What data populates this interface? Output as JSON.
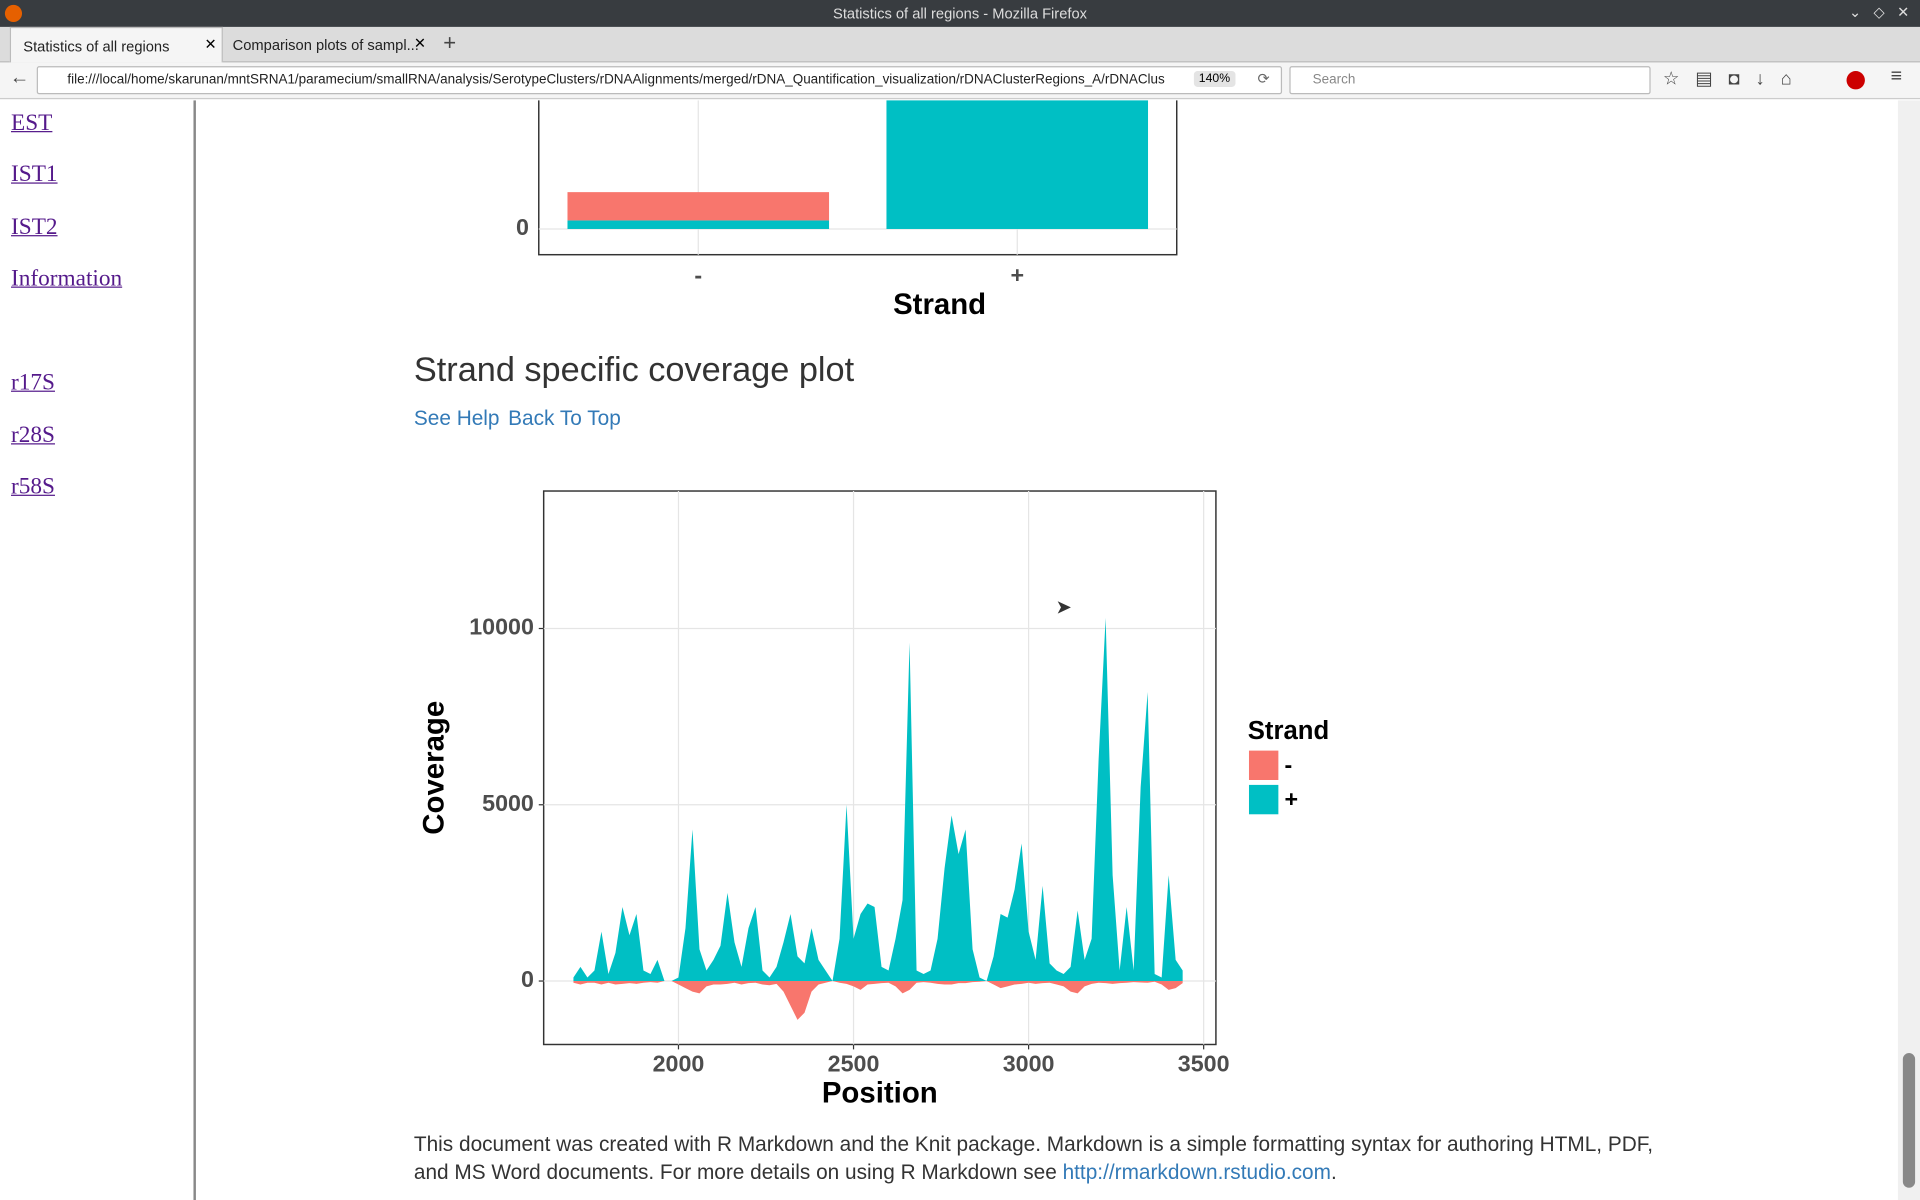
{
  "browser": {
    "window_title": "Statistics of all regions - Mozilla Firefox",
    "tabs": [
      "Statistics of all regions",
      "Comparison plots of sampl..."
    ],
    "url": "file:///local/home/skarunan/mntSRNA1/paramecium/smallRNA/analysis/SerotypeClusters/rDNAAlignments/merged/rDNA_Quantification_visualization/rDNAClusterRegions_A/rDNAClus",
    "zoom": "140%",
    "search_placeholder": "Search"
  },
  "sidebar": {
    "links": [
      "EST",
      "IST1",
      "IST2",
      "Information",
      "r17S",
      "r28S",
      "r58S"
    ]
  },
  "section": {
    "title": "Strand specific coverage plot",
    "links": [
      "See Help",
      "Back To Top"
    ]
  },
  "footer": {
    "text": "This document was created with R Markdown and the Knit package. Markdown is a simple formatting syntax for authoring HTML, PDF, and MS Word documents. For more details on using R Markdown see ",
    "link": "http://rmarkdown.rstudio.com",
    "end": "."
  },
  "chart_data": [
    {
      "type": "bar",
      "stacked": true,
      "x_label": "Strand",
      "categories": [
        "-",
        "+"
      ],
      "series": [
        {
          "name": "-",
          "color": "#F8766D",
          "values": [
            1100,
            0
          ]
        },
        {
          "name": "+",
          "color": "#00BFC4",
          "values": [
            333,
            20000
          ]
        }
      ],
      "ylim": [
        -1000,
        21000
      ],
      "yticks": [
        0
      ],
      "grid": true
    },
    {
      "type": "area",
      "x_label": "Position",
      "y_label": "Coverage",
      "legend_title": "Strand",
      "legend": "right",
      "x": [
        1700,
        1720,
        1740,
        1760,
        1780,
        1800,
        1820,
        1840,
        1860,
        1880,
        1900,
        1920,
        1940,
        1960,
        1980,
        2000,
        2020,
        2040,
        2060,
        2080,
        2100,
        2120,
        2140,
        2160,
        2180,
        2200,
        2220,
        2240,
        2260,
        2280,
        2300,
        2320,
        2340,
        2360,
        2380,
        2400,
        2420,
        2440,
        2460,
        2480,
        2500,
        2520,
        2540,
        2560,
        2580,
        2600,
        2620,
        2640,
        2660,
        2680,
        2700,
        2720,
        2740,
        2760,
        2780,
        2800,
        2820,
        2840,
        2860,
        2880,
        2900,
        2920,
        2940,
        2960,
        2980,
        3000,
        3020,
        3040,
        3060,
        3080,
        3100,
        3120,
        3140,
        3160,
        3180,
        3200,
        3220,
        3240,
        3260,
        3280,
        3300,
        3320,
        3340,
        3360,
        3380,
        3400,
        3420,
        3440
      ],
      "series": [
        {
          "name": "-",
          "color": "#F8766D",
          "values": [
            -50,
            -100,
            -50,
            -50,
            -100,
            -50,
            -100,
            -80,
            -60,
            -80,
            -50,
            -30,
            -50,
            0,
            0,
            -100,
            -200,
            -300,
            -350,
            -150,
            -100,
            -100,
            -80,
            -50,
            -100,
            -60,
            -50,
            -100,
            -120,
            -80,
            -300,
            -700,
            -1100,
            -900,
            -300,
            -100,
            -50,
            0,
            -50,
            -80,
            -150,
            -250,
            -100,
            -80,
            -60,
            -50,
            -150,
            -350,
            -250,
            -50,
            -30,
            -50,
            -80,
            -100,
            -100,
            -60,
            -60,
            -30,
            -20,
            0,
            -100,
            -200,
            -150,
            -100,
            -80,
            -50,
            -80,
            -60,
            -50,
            -100,
            -150,
            -300,
            -350,
            -150,
            -80,
            -50,
            -60,
            -80,
            -60,
            -50,
            -30,
            -40,
            -50,
            -20,
            -100,
            -250,
            -200,
            -60
          ]
        },
        {
          "name": "+",
          "color": "#00BFC4",
          "values": [
            100,
            400,
            100,
            300,
            1400,
            200,
            800,
            2100,
            1300,
            1900,
            300,
            200,
            600,
            0,
            0,
            100,
            1500,
            4300,
            900,
            300,
            600,
            1000,
            2500,
            1100,
            400,
            1500,
            2100,
            300,
            100,
            400,
            1100,
            1900,
            700,
            500,
            1500,
            600,
            300,
            0,
            1200,
            5000,
            1200,
            1900,
            2200,
            2100,
            400,
            300,
            1200,
            2300,
            9600,
            300,
            200,
            300,
            1200,
            3200,
            4700,
            3600,
            4300,
            900,
            100,
            0,
            700,
            1900,
            1800,
            2600,
            3900,
            1400,
            600,
            2700,
            500,
            300,
            200,
            400,
            2000,
            600,
            1200,
            6300,
            10300,
            3000,
            300,
            2100,
            300,
            5500,
            8200,
            200,
            100,
            3000,
            600,
            300
          ]
        }
      ],
      "xlim": [
        1615,
        3535
      ],
      "xticks": [
        2000,
        2500,
        3000,
        3500
      ],
      "ylim": [
        -1800,
        13900
      ],
      "yticks": [
        0,
        5000,
        10000
      ],
      "grid": true
    }
  ]
}
